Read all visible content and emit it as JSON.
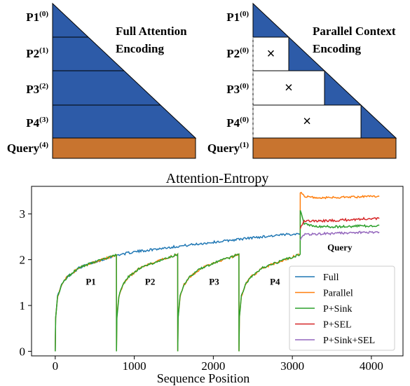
{
  "diagrams": {
    "colors": {
      "prompt": "#2d5ba8",
      "query": "#c8742f",
      "edge": "#000000"
    },
    "left": {
      "title_line1": "Full Attention",
      "title_line2": "Encoding",
      "rows": [
        {
          "name": "P1",
          "sup": "(0)"
        },
        {
          "name": "P2",
          "sup": "(1)"
        },
        {
          "name": "P3",
          "sup": "(2)"
        },
        {
          "name": "P4",
          "sup": "(3)"
        },
        {
          "name": "Query",
          "sup": "(4)"
        }
      ]
    },
    "right": {
      "title_line1": "Parallel Context",
      "title_line2": "Encoding",
      "rows": [
        {
          "name": "P1",
          "sup": "(0)"
        },
        {
          "name": "P2",
          "sup": "(0)"
        },
        {
          "name": "P3",
          "sup": "(0)"
        },
        {
          "name": "P4",
          "sup": "(0)"
        },
        {
          "name": "Query",
          "sup": "(1)"
        }
      ],
      "masked_mark": "×"
    }
  },
  "chart_data": {
    "type": "line",
    "title": "Attention-Entropy",
    "xlabel": "Sequence Position",
    "ylabel": "",
    "xlim": [
      -300,
      4400
    ],
    "ylim": [
      -0.1,
      3.6
    ],
    "xticks": [
      0,
      1000,
      2000,
      3000,
      4000
    ],
    "yticks": [
      0,
      1,
      2,
      3
    ],
    "grid": false,
    "legend_position": "lower-right",
    "segment_boundaries": [
      0,
      775,
      1550,
      2325,
      3100,
      4100
    ],
    "segment_labels": [
      {
        "text": "P1",
        "x": 450,
        "y": 1.45
      },
      {
        "text": "P2",
        "x": 1200,
        "y": 1.45
      },
      {
        "text": "P3",
        "x": 2010,
        "y": 1.45
      },
      {
        "text": "P4",
        "x": 2780,
        "y": 1.45
      },
      {
        "text": "Query",
        "x": 3600,
        "y": 2.2
      }
    ],
    "series": [
      {
        "name": "Full",
        "color": "#1f77b4",
        "points": [
          [
            0,
            0
          ],
          [
            5,
            0.75
          ],
          [
            30,
            1.2
          ],
          [
            80,
            1.45
          ],
          [
            150,
            1.62
          ],
          [
            300,
            1.82
          ],
          [
            500,
            1.95
          ],
          [
            775,
            2.1
          ],
          [
            1000,
            2.17
          ],
          [
            1500,
            2.28
          ],
          [
            2000,
            2.38
          ],
          [
            2500,
            2.48
          ],
          [
            3000,
            2.56
          ],
          [
            3100,
            2.57
          ]
        ]
      },
      {
        "name": "Parallel",
        "color": "#ff7f0e",
        "points": [
          [
            0,
            0
          ],
          [
            5,
            0.75
          ],
          [
            30,
            1.2
          ],
          [
            80,
            1.45
          ],
          [
            150,
            1.62
          ],
          [
            300,
            1.82
          ],
          [
            500,
            1.95
          ],
          [
            774,
            2.1
          ],
          [
            775,
            0
          ],
          [
            780,
            0.75
          ],
          [
            805,
            1.2
          ],
          [
            855,
            1.45
          ],
          [
            925,
            1.62
          ],
          [
            1075,
            1.82
          ],
          [
            1275,
            1.95
          ],
          [
            1549,
            2.12
          ],
          [
            1550,
            0
          ],
          [
            1555,
            0.75
          ],
          [
            1580,
            1.2
          ],
          [
            1630,
            1.45
          ],
          [
            1700,
            1.62
          ],
          [
            1850,
            1.82
          ],
          [
            2050,
            1.95
          ],
          [
            2324,
            2.12
          ],
          [
            2325,
            0
          ],
          [
            2330,
            0.75
          ],
          [
            2355,
            1.2
          ],
          [
            2405,
            1.45
          ],
          [
            2475,
            1.62
          ],
          [
            2625,
            1.82
          ],
          [
            2825,
            1.95
          ],
          [
            3099,
            2.12
          ],
          [
            3100,
            3.48
          ],
          [
            3150,
            3.38
          ],
          [
            3300,
            3.35
          ],
          [
            3600,
            3.36
          ],
          [
            4000,
            3.38
          ],
          [
            4100,
            3.38
          ]
        ]
      },
      {
        "name": "P+Sink",
        "color": "#2ca02c",
        "points": [
          [
            0,
            0
          ],
          [
            5,
            0.75
          ],
          [
            30,
            1.2
          ],
          [
            80,
            1.45
          ],
          [
            150,
            1.62
          ],
          [
            300,
            1.82
          ],
          [
            500,
            1.95
          ],
          [
            774,
            2.1
          ],
          [
            775,
            0
          ],
          [
            780,
            0.75
          ],
          [
            805,
            1.2
          ],
          [
            855,
            1.45
          ],
          [
            925,
            1.62
          ],
          [
            1075,
            1.82
          ],
          [
            1275,
            1.95
          ],
          [
            1549,
            2.12
          ],
          [
            1550,
            0
          ],
          [
            1555,
            0.75
          ],
          [
            1580,
            1.2
          ],
          [
            1630,
            1.45
          ],
          [
            1700,
            1.62
          ],
          [
            1850,
            1.82
          ],
          [
            2050,
            1.95
          ],
          [
            2324,
            2.12
          ],
          [
            2325,
            0
          ],
          [
            2330,
            0.75
          ],
          [
            2355,
            1.2
          ],
          [
            2405,
            1.45
          ],
          [
            2475,
            1.62
          ],
          [
            2625,
            1.82
          ],
          [
            2825,
            1.95
          ],
          [
            3099,
            2.12
          ],
          [
            3100,
            3.1
          ],
          [
            3150,
            2.78
          ],
          [
            3300,
            2.72
          ],
          [
            3600,
            2.72
          ],
          [
            4000,
            2.74
          ],
          [
            4100,
            2.75
          ]
        ]
      },
      {
        "name": "P+SEL",
        "color": "#d62728",
        "points": [
          [
            3100,
            2.7
          ],
          [
            3150,
            2.85
          ],
          [
            3300,
            2.84
          ],
          [
            3600,
            2.86
          ],
          [
            4000,
            2.9
          ],
          [
            4100,
            2.9
          ]
        ]
      },
      {
        "name": "P+Sink+SEL",
        "color": "#9467bd",
        "points": [
          [
            3100,
            2.45
          ],
          [
            3150,
            2.55
          ],
          [
            3300,
            2.56
          ],
          [
            3600,
            2.58
          ],
          [
            4000,
            2.6
          ],
          [
            4100,
            2.6
          ]
        ]
      }
    ]
  }
}
